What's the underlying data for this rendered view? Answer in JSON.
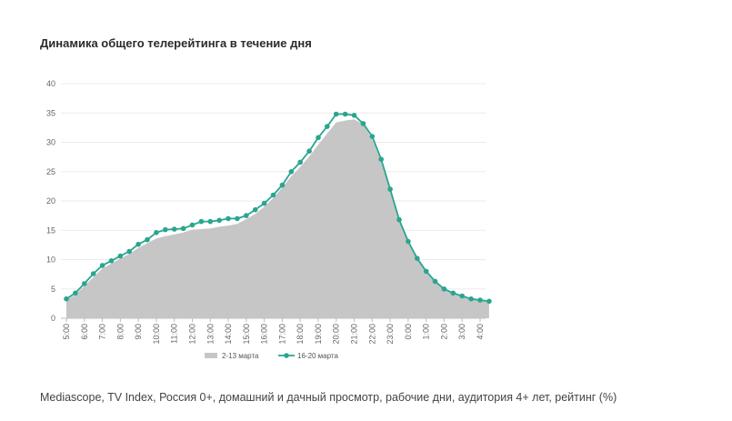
{
  "chart_title": "Динамика общего телерейтинга в течение дня",
  "source_note": "Mediascope, TV Index, Россия 0+, домашний и дачный просмотр, рабочие дни, аудитория 4+ лет, рейтинг (%)",
  "colors": {
    "area": "#c6c6c6",
    "line": "#2aa58f",
    "grid": "#ebebeb",
    "axis": "#bbbbbb"
  },
  "chart_data": {
    "type": "line",
    "title": "Динамика общего телерейтинга в течение дня",
    "xlabel": "",
    "ylabel": "",
    "ylim": [
      0,
      40
    ],
    "yticks": [
      0,
      5,
      10,
      15,
      20,
      25,
      30,
      35,
      40
    ],
    "grid": true,
    "legend_position": "bottom",
    "categories": [
      "5:00",
      "6:00",
      "7:00",
      "8:00",
      "9:00",
      "10:00",
      "11:00",
      "12:00",
      "13:00",
      "14:00",
      "15:00",
      "16:00",
      "17:00",
      "18:00",
      "19:00",
      "20:00",
      "21:00",
      "22:00",
      "23:00",
      "0:00",
      "1:00",
      "2:00",
      "3:00",
      "4:00"
    ],
    "series": [
      {
        "name": "2-13 марта",
        "style": "area",
        "color": "#c6c6c6",
        "x": [
          0,
          0.5,
          1,
          1.5,
          2,
          2.5,
          3,
          3.5,
          4,
          4.5,
          5,
          5.5,
          6,
          6.5,
          7,
          7.5,
          8,
          8.5,
          9,
          9.5,
          10,
          10.5,
          11,
          11.5,
          12,
          12.5,
          13,
          13.5,
          14,
          14.5,
          15,
          15.5,
          16,
          16.5,
          17,
          17.5,
          18,
          18.5,
          19,
          19.5,
          20,
          20.5,
          21,
          21.5,
          22,
          22.5,
          23,
          23.5
        ],
        "values": [
          3.1,
          4.0,
          5.5,
          7.0,
          8.5,
          9.3,
          10.2,
          11.0,
          12.0,
          12.8,
          13.6,
          14.0,
          14.3,
          14.6,
          15.1,
          15.2,
          15.3,
          15.6,
          15.8,
          16.1,
          16.9,
          17.8,
          19.0,
          20.5,
          22.3,
          24.2,
          25.8,
          27.6,
          29.6,
          31.5,
          33.4,
          33.7,
          33.9,
          33.1,
          30.5,
          26.8,
          21.9,
          16.8,
          13.0,
          10.0,
          7.8,
          6.1,
          4.9,
          4.2,
          3.7,
          3.3,
          3.0,
          2.8
        ]
      },
      {
        "name": "16-20 марта",
        "style": "line",
        "color": "#2aa58f",
        "x": [
          0,
          0.5,
          1,
          1.5,
          2,
          2.5,
          3,
          3.5,
          4,
          4.5,
          5,
          5.5,
          6,
          6.5,
          7,
          7.5,
          8,
          8.5,
          9,
          9.5,
          10,
          10.5,
          11,
          11.5,
          12,
          12.5,
          13,
          13.5,
          14,
          14.5,
          15,
          15.5,
          16,
          16.5,
          17,
          17.5,
          18,
          18.5,
          19,
          19.5,
          20,
          20.5,
          21,
          21.5,
          22,
          22.5,
          23,
          23.5
        ],
        "values": [
          3.3,
          4.3,
          5.9,
          7.6,
          9.0,
          9.8,
          10.6,
          11.4,
          12.6,
          13.4,
          14.6,
          15.1,
          15.2,
          15.3,
          15.9,
          16.5,
          16.5,
          16.7,
          17.0,
          17.0,
          17.5,
          18.5,
          19.6,
          21.0,
          22.7,
          25.0,
          26.6,
          28.5,
          30.8,
          32.7,
          34.8,
          34.8,
          34.6,
          33.2,
          31.0,
          27.1,
          22.0,
          16.8,
          13.1,
          10.2,
          8.0,
          6.3,
          5.0,
          4.3,
          3.8,
          3.3,
          3.1,
          2.9
        ]
      }
    ]
  }
}
